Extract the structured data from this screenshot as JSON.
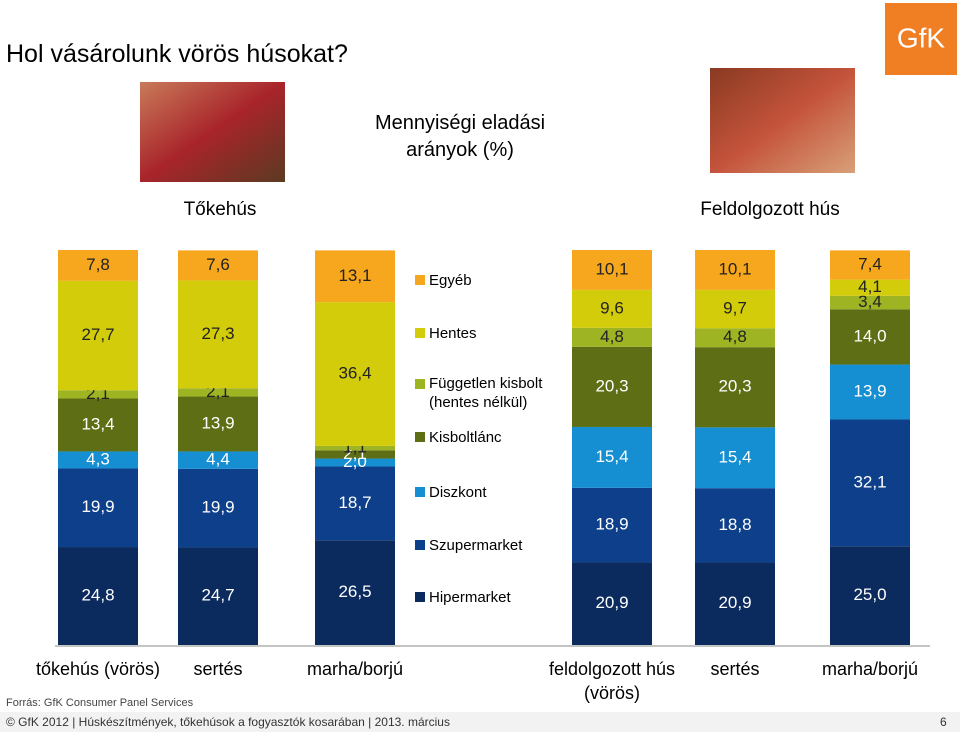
{
  "chart_data": {
    "type": "stacked_bar",
    "title": "Hol vásárolunk vörös húsokat?",
    "subtitle": "Mennyiségi eladási arányok (%)",
    "groups": [
      "Tőkehús",
      "Feldolgozott hús"
    ],
    "categories": [
      "tőkehús (vörös)",
      "sertés",
      "marha/borjú",
      "feldolgozott hús (vörös)",
      "sertés",
      "marha/borjú"
    ],
    "ylim": [
      0,
      100
    ],
    "series": [
      {
        "name": "Hipermarket",
        "color": "#0b2b5e",
        "values": [
          24.8,
          24.7,
          26.5,
          20.9,
          20.9,
          25.0
        ],
        "value_labels": [
          "24,8",
          "24,7",
          "26,5",
          "20,9",
          "20,9",
          "25,0"
        ]
      },
      {
        "name": "Szupermarket",
        "color": "#0e3f8a",
        "values": [
          19.9,
          19.9,
          18.7,
          18.9,
          18.8,
          32.1
        ],
        "value_labels": [
          "19,9",
          "19,9",
          "18,7",
          "18,9",
          "18,8",
          "32,1"
        ]
      },
      {
        "name": "Diszkont",
        "color": "#168fd2",
        "values": [
          4.3,
          4.4,
          2.0,
          15.4,
          15.4,
          13.9
        ],
        "value_labels": [
          "4,3",
          "4,4",
          "2,0",
          "15,4",
          "15,4",
          "13,9"
        ]
      },
      {
        "name": "Kisboltlánc",
        "color": "#5d6e15",
        "values": [
          13.4,
          13.9,
          2.1,
          20.3,
          20.3,
          14.0
        ],
        "value_labels": [
          "13,4",
          "13,9",
          "2,1",
          "20,3",
          "20,3",
          "14,0"
        ]
      },
      {
        "name": "Független kisbolt (hentes nélkül)",
        "color": "#9fb422",
        "values": [
          2.1,
          2.1,
          1.1,
          4.8,
          4.8,
          3.4
        ],
        "value_labels": [
          "2,1",
          "2,1",
          "1,1",
          "4,8",
          "4,8",
          "3,4"
        ]
      },
      {
        "name": "Hentes",
        "color": "#d3cc0b",
        "values": [
          27.7,
          27.3,
          36.4,
          9.6,
          9.7,
          4.1
        ],
        "value_labels": [
          "27,7",
          "27,3",
          "36,4",
          "9,6",
          "9,7",
          "4,1"
        ]
      },
      {
        "name": "Egyéb",
        "color": "#f7a71e",
        "values": [
          7.8,
          7.6,
          13.1,
          10.1,
          10.1,
          7.4
        ],
        "value_labels": [
          "7,8",
          "7,6",
          "13,1",
          "10,1",
          "10,1",
          "7,4"
        ]
      }
    ],
    "source": "Forrás: GfK Consumer Panel Services",
    "footer": "© GfK 2012 | Húskészítmények, tőkehúsok a fogyasztók kosarában | 2013. március",
    "page_number": "6",
    "logo": "GfK"
  }
}
